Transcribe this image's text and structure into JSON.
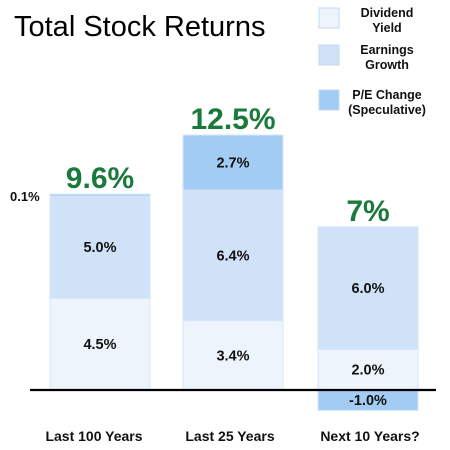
{
  "chart_data": {
    "type": "bar",
    "stacked": true,
    "title": "Total Stock Returns",
    "xlabel": "",
    "ylabel": "",
    "grid": false,
    "legend_position": "top-right",
    "categories": [
      "Last 100 Years",
      "Last 25 Years",
      "Next 10 Years?"
    ],
    "series": [
      {
        "name": "Dividend Yield",
        "name_lines": [
          "Dividend",
          "Yield"
        ],
        "color": "#eef4fc",
        "values": [
          4.5,
          3.4,
          2.0
        ]
      },
      {
        "name": "Earnings Growth",
        "name_lines": [
          "Earnings",
          "Growth"
        ],
        "color": "#cfe2f8",
        "values": [
          5.0,
          6.4,
          6.0
        ]
      },
      {
        "name": "P/E Change (Speculative)",
        "name_lines": [
          "P/E Change",
          "(Speculative)"
        ],
        "color": "#a3ccf5",
        "values": [
          0.1,
          2.7,
          -1.0
        ]
      }
    ],
    "segment_labels": [
      [
        "4.5%",
        "3.4%",
        "2.0%"
      ],
      [
        "5.0%",
        "6.4%",
        "6.0%"
      ],
      [
        "0.1%",
        "2.7%",
        "-1.0%"
      ]
    ],
    "totals": [
      "9.6%",
      "12.5%",
      "7%"
    ],
    "total_color": "#1a7a3c",
    "ylim": [
      -1.0,
      12.5
    ]
  }
}
